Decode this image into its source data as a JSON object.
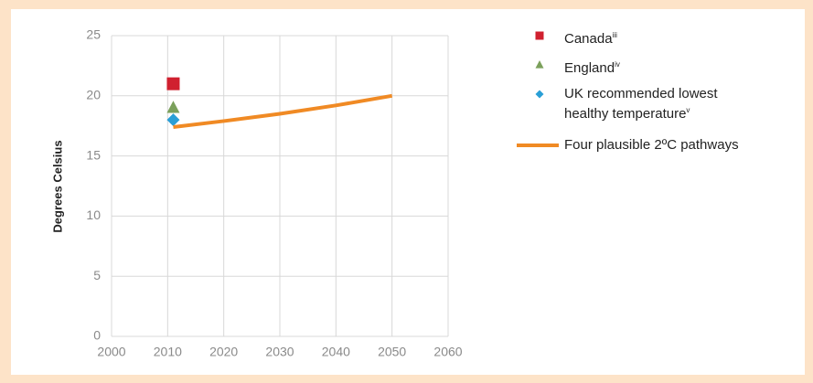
{
  "chart_data": {
    "type": "scatter",
    "y_label": "Degrees Celsius",
    "xlim": [
      2000,
      2060
    ],
    "xticks": [
      2000,
      2010,
      2020,
      2030,
      2040,
      2050,
      2060
    ],
    "ylim": [
      0,
      25
    ],
    "yticks": [
      0,
      5,
      10,
      15,
      20,
      25
    ],
    "grid": true,
    "series": [
      {
        "name": "Canada",
        "name_note": "iii",
        "color": "#d0202f",
        "marker": "square",
        "x": [
          2011
        ],
        "values": [
          21
        ]
      },
      {
        "name": "England",
        "name_note": "iv",
        "color": "#7ba05b",
        "marker": "triangle",
        "x": [
          2011
        ],
        "values": [
          19
        ]
      },
      {
        "name": "UK recommended lowest healthy temperature",
        "name_note": "v",
        "color": "#2a9fd6",
        "marker": "diamond",
        "x": [
          2011
        ],
        "values": [
          18
        ]
      },
      {
        "name": "Four plausible 2ºC pathways",
        "color": "#f08a24",
        "marker": "line",
        "x": [
          2011,
          2020,
          2030,
          2040,
          2050
        ],
        "values": [
          17.4,
          17.9,
          18.5,
          19.2,
          20
        ]
      }
    ]
  }
}
